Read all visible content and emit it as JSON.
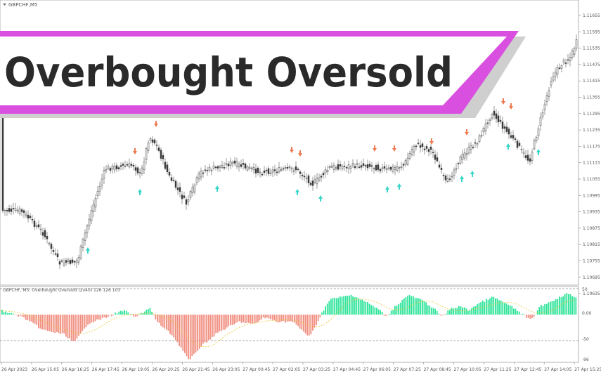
{
  "window": {
    "symbol_label": "GBPCHF,M5"
  },
  "banner": {
    "title": "Overbought Oversold",
    "accent_color": "#d94fe0",
    "shadow_color": "#cfcfcf"
  },
  "price_axis": {
    "labels": [
      "1.11655",
      "1.11595",
      "1.11535",
      "1.11475",
      "1.11415",
      "1.11355",
      "1.11295",
      "1.11235",
      "1.11175",
      "1.11115",
      "1.11055",
      "1.10995",
      "1.10935",
      "1.10875",
      "1.10815",
      "1.10755",
      "1.10695",
      "1.10635"
    ]
  },
  "indicator": {
    "label": "GBPCHF, M5: Overbought Oversold (2x40) 126 126 103",
    "axis_labels": [
      "50",
      "0.00",
      "-50",
      "-96"
    ],
    "bull_color": "#2ee39a",
    "bear_color": "#f08f80",
    "signal_color": "#e8c830"
  },
  "time_axis": {
    "labels": [
      "26 Apr 2023",
      "26 Apr 15:05",
      "26 Apr 16:25",
      "26 Apr 17:45",
      "26 Apr 19:05",
      "26 Apr 20:25",
      "26 Apr 21:45",
      "26 Apr 23:05",
      "27 Apr 00:45",
      "27 Apr 02:05",
      "27 Apr 03:25",
      "27 Apr 04:45",
      "27 Apr 06:05",
      "27 Apr 07:25",
      "27 Apr 08:45",
      "27 Apr 10:05",
      "27 Apr 11:25",
      "27 Apr 12:45",
      "27 Apr 14:05",
      "27 Apr 15:25"
    ]
  },
  "signals": {
    "up_color": "#35d6c8",
    "down_color": "#ee7a50"
  }
}
